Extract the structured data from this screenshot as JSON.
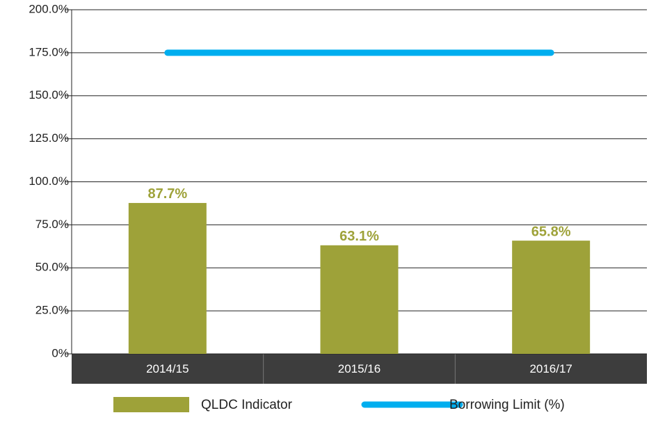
{
  "chart_data": {
    "type": "bar",
    "categories": [
      "2014/15",
      "2015/16",
      "2016/17"
    ],
    "series": [
      {
        "name": "QLDC Indicator",
        "type": "bar",
        "color": "#9ea239",
        "values": [
          87.7,
          63.1,
          65.8
        ],
        "value_labels": [
          "87.7%",
          "63.1%",
          "65.8%"
        ]
      },
      {
        "name": "Borrowing Limit (%)",
        "type": "line",
        "color": "#00aeef",
        "values": [
          175,
          175,
          175
        ]
      }
    ],
    "ylim": [
      0,
      200
    ],
    "yticks": [
      {
        "value": 0,
        "label": "0%"
      },
      {
        "value": 25,
        "label": "25.0%"
      },
      {
        "value": 50,
        "label": "50.0%"
      },
      {
        "value": 75,
        "label": "75.0%"
      },
      {
        "value": 100,
        "label": "100.0%"
      },
      {
        "value": 125,
        "label": "125.0%"
      },
      {
        "value": 150,
        "label": "150.0%"
      },
      {
        "value": 175,
        "label": "175.0%"
      },
      {
        "value": 200,
        "label": "200.0%"
      }
    ],
    "grid": true,
    "legend": "bottom"
  }
}
